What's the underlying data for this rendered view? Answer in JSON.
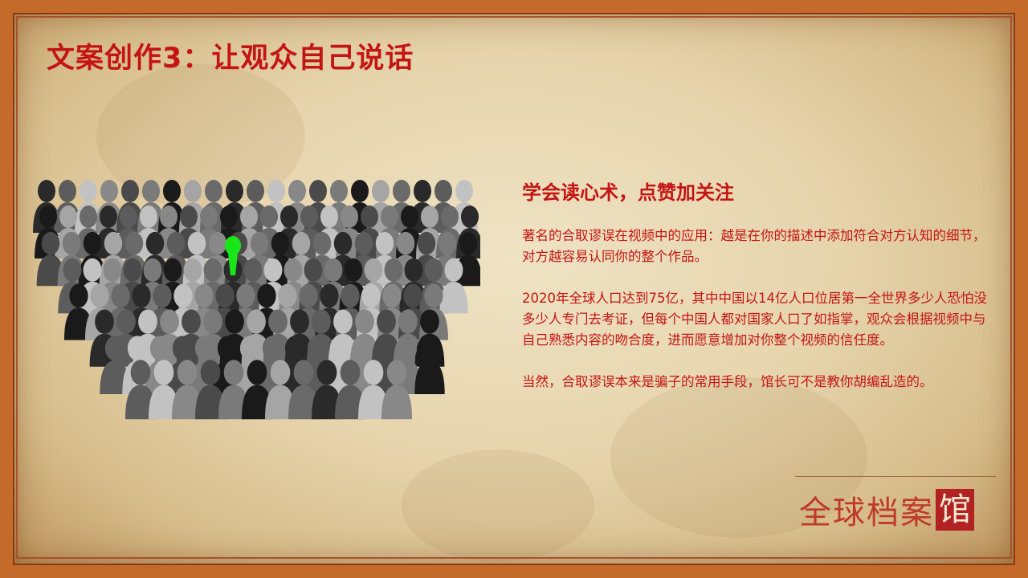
{
  "title": "文案创作3：让观众自己说话",
  "subheading": "学会读心术，点赞加关注",
  "paragraphs": [
    "著名的合取谬误在视频中的应用：越是在你的描述中添加符合对方认知的细节，对方越容易认同你的整个作品。",
    "2020年全球人口达到75亿，其中中国以14亿人口位居第一全世界多少人恐怕没多少人专门去考证，但每个中国人都对国家人口了如指掌，观众会根据视频中与自己熟悉内容的吻合度，进而愿意增加对你整个视频的信任度。",
    "当然，合取谬误本来是骗子的常用手段，馆长可不是教你胡编乱造的。"
  ],
  "logo": {
    "main": "全球档案",
    "box": "馆"
  },
  "colors": {
    "accent": "#c41414",
    "highlight_person": "#19e619"
  }
}
